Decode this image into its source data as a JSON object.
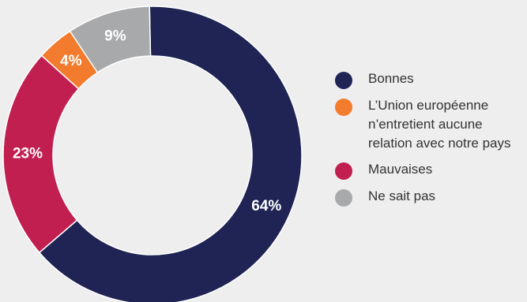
{
  "chart_data": {
    "type": "pie",
    "donut": true,
    "slices": [
      {
        "label": "Bonnes",
        "value": 64,
        "value_label": "64%",
        "color": "#1f2454"
      },
      {
        "label": "Mauvaises",
        "value": 23,
        "value_label": "23%",
        "color": "#c21f51"
      },
      {
        "label": "L’Union européenne n’entretient aucune relation avec notre pays",
        "value": 4,
        "value_label": "4%",
        "color": "#f37b2d"
      },
      {
        "label": "Ne sait pas",
        "value": 9,
        "value_label": "9%",
        "color": "#a8a9ab"
      }
    ],
    "legend": {
      "placement": "right",
      "entries": [
        {
          "label": "Bonnes",
          "color": "#1f2454"
        },
        {
          "label": "L’Union européenne n’entretient aucune relation avec notre pays",
          "color": "#f37b2d"
        },
        {
          "label": "Mauvaises",
          "color": "#c21f51"
        },
        {
          "label": "Ne sait pas",
          "color": "#a8a9ab"
        }
      ]
    }
  }
}
